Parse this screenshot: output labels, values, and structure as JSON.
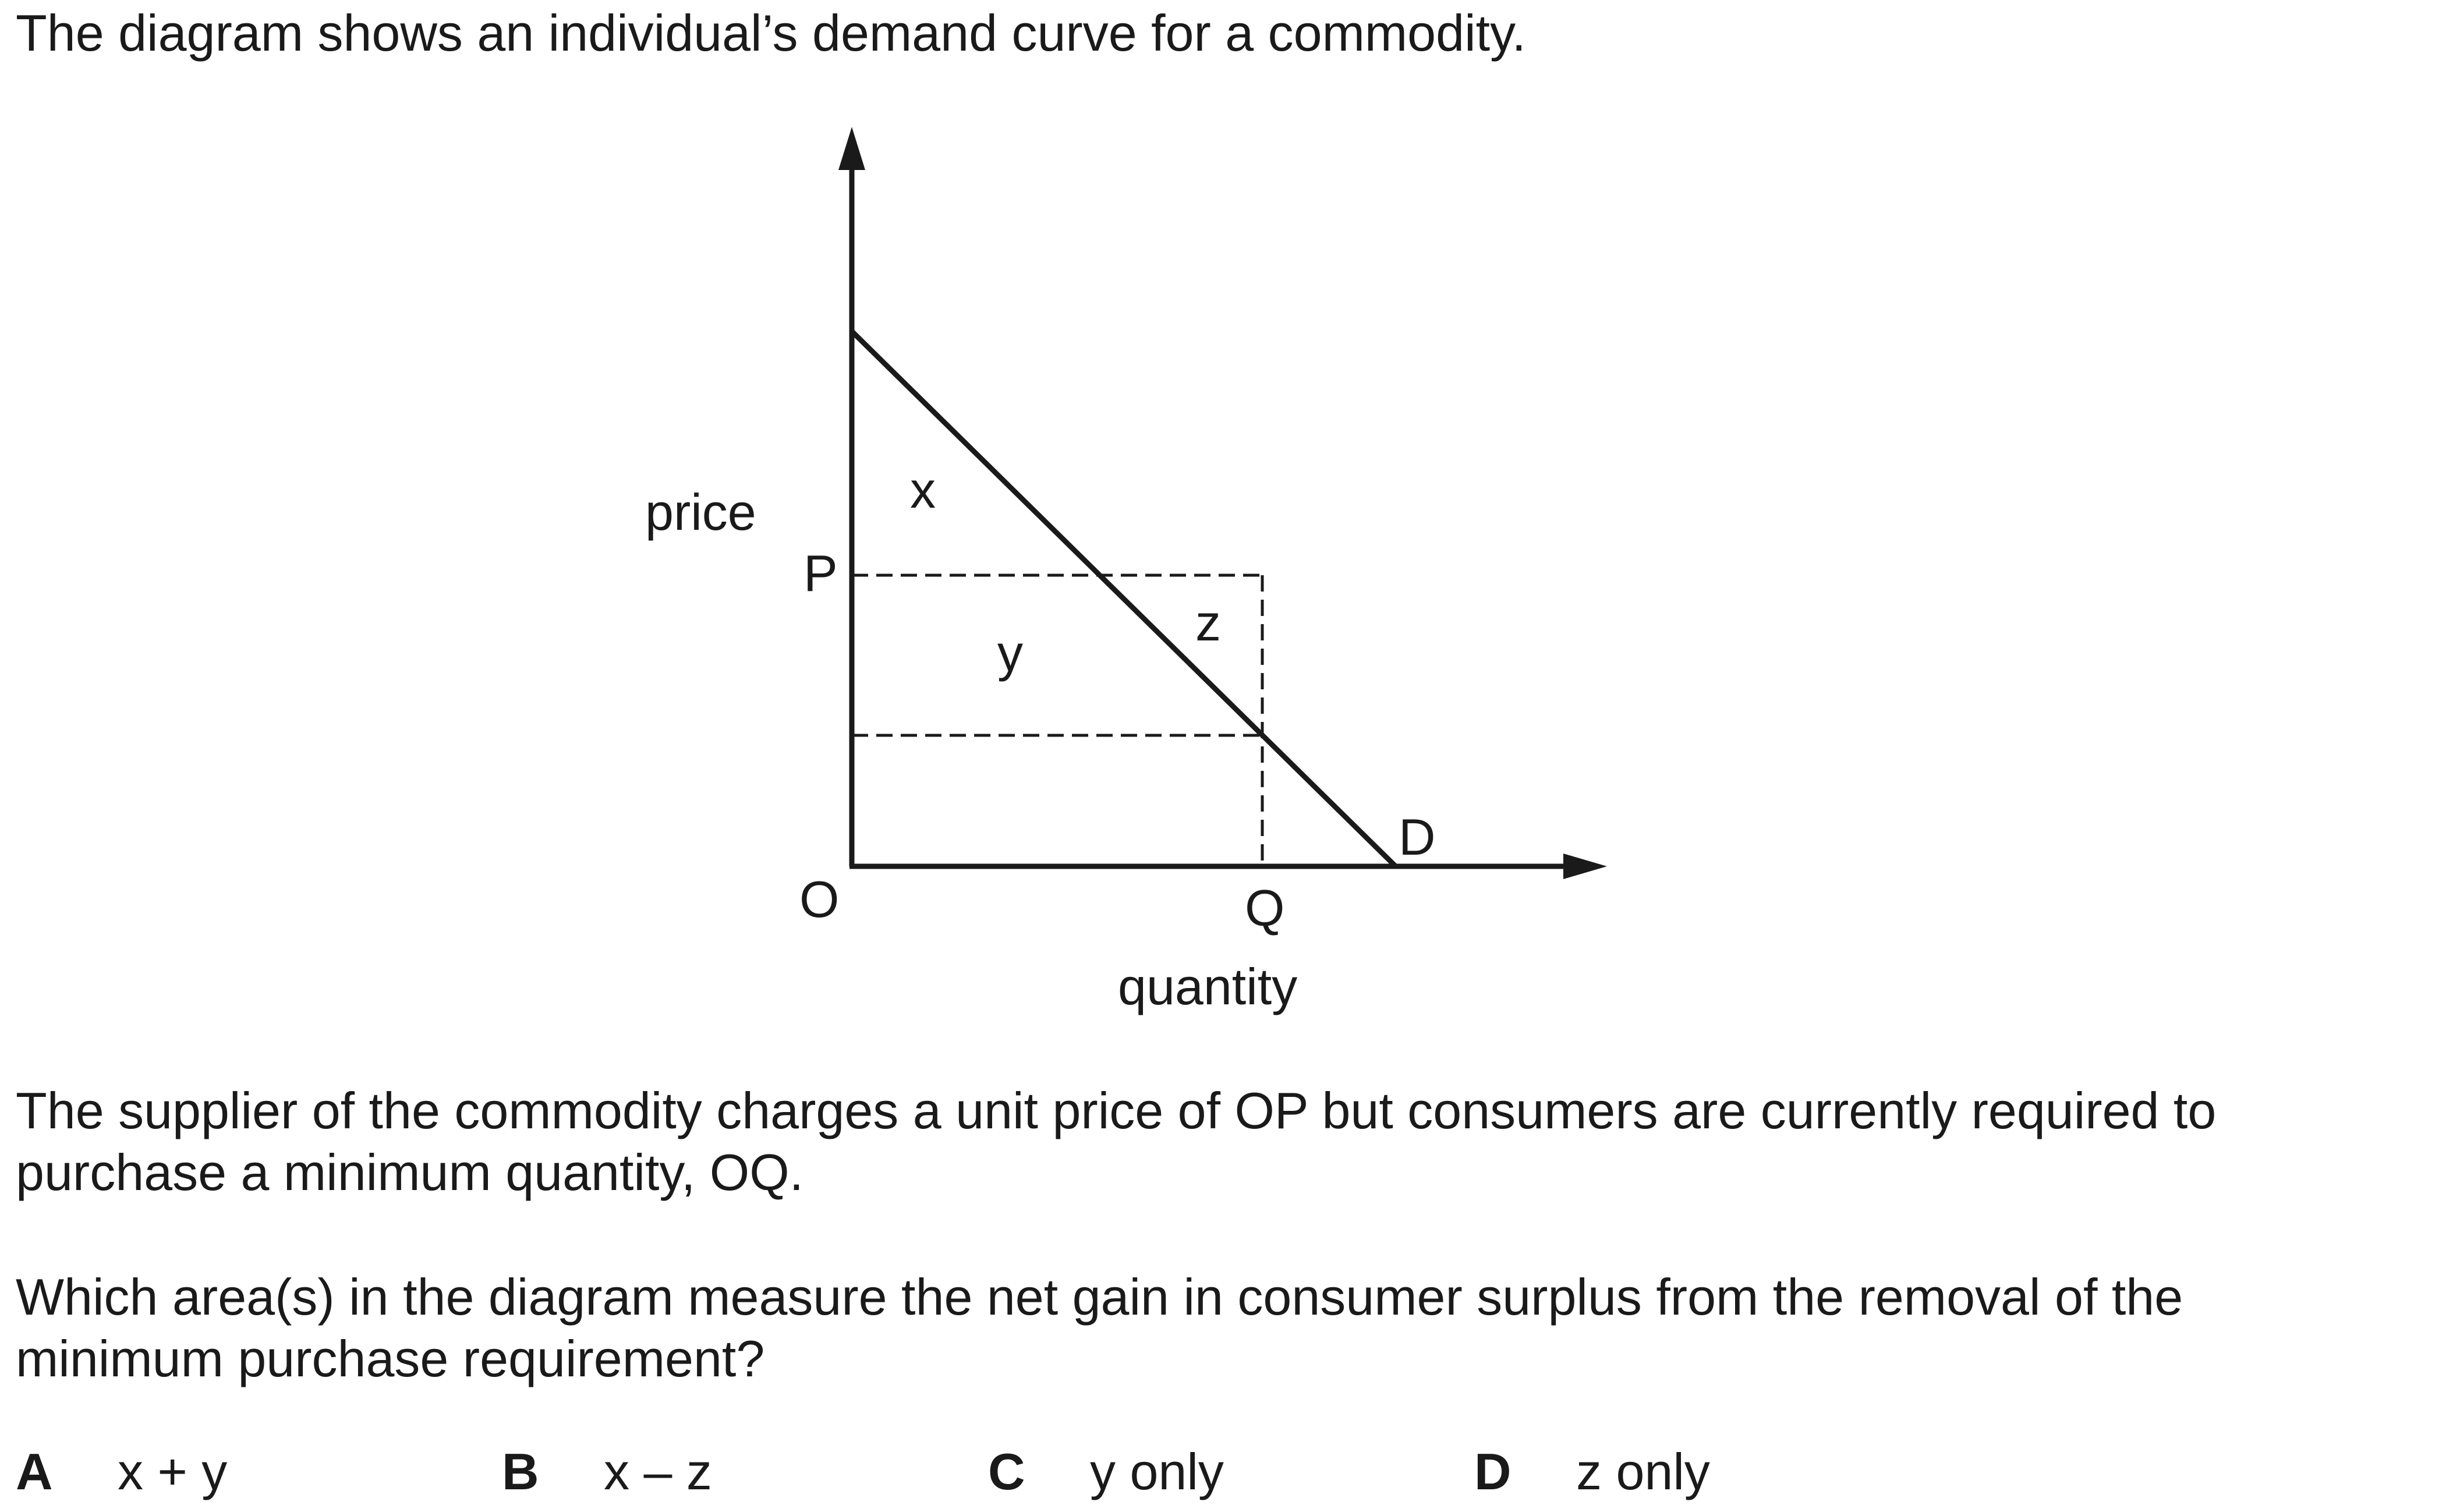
{
  "question": {
    "intro": "The diagram shows an individual’s demand curve for a commodity.",
    "paragraph1": [
      "The supplier of the commodity charges a unit price of OP but consumers are currently required to",
      "purchase a minimum quantity, OQ."
    ],
    "paragraph2": [
      "Which area(s) in the diagram measure the net gain in consumer surplus from the removal of the",
      "minimum purchase requirement?"
    ]
  },
  "diagram": {
    "y_axis_label": "price",
    "x_axis_label": "quantity",
    "origin_label": "O",
    "price_label": "P",
    "quantity_label": "Q",
    "curve_label": "D",
    "area_labels": [
      "x",
      "y",
      "z"
    ],
    "line_color": "#1a1a1a"
  },
  "options": [
    {
      "letter": "A",
      "text": "x + y"
    },
    {
      "letter": "B",
      "text": "x – z"
    },
    {
      "letter": "C",
      "text": "y only"
    },
    {
      "letter": "D",
      "text": "z only"
    }
  ]
}
